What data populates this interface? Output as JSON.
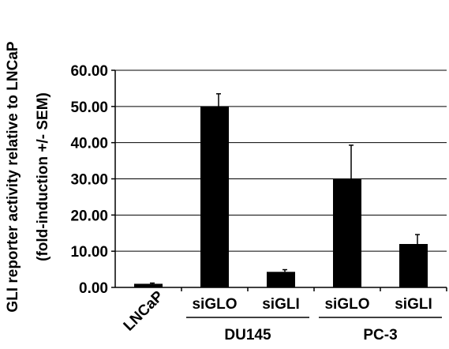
{
  "chart_data": {
    "type": "bar",
    "ylabel_line1": "GLI reporter activity relative to LNCaP",
    "ylabel_line2": "(fold-induction +/- SEM)",
    "ylim": [
      0,
      60
    ],
    "yticks": [
      "0.00",
      "10.00",
      "20.00",
      "30.00",
      "40.00",
      "50.00",
      "60.00"
    ],
    "grid": true,
    "legend": "none",
    "categories": [
      "LNCaP",
      "siGLO",
      "siGLI",
      "siGLO",
      "siGLI"
    ],
    "values": [
      1.0,
      50.0,
      4.3,
      30.0,
      12.0
    ],
    "errors": [
      0.2,
      3.5,
      0.6,
      9.3,
      2.6
    ],
    "groups": [
      {
        "label": "DU145",
        "categories": [
          1,
          2
        ]
      },
      {
        "label": "PC-3",
        "categories": [
          3,
          4
        ]
      }
    ],
    "bar_color": "#000000"
  }
}
